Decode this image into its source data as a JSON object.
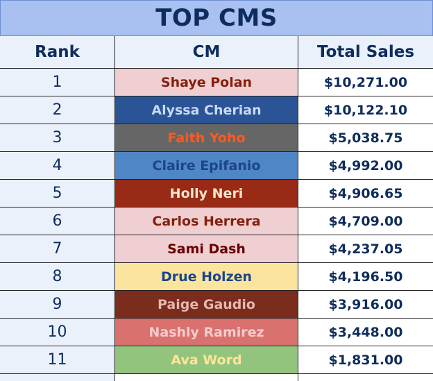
{
  "header": {
    "title": "TOP CMS"
  },
  "table": {
    "columns": [
      "Rank",
      "CM",
      "Total Sales"
    ],
    "rows": [
      [
        1,
        "Shaye Polan",
        "$10,271.00"
      ],
      [
        2,
        "Alyssa Cherian",
        "$10,122.10"
      ],
      [
        3,
        "Faith Yoho",
        "$5,038.75"
      ],
      [
        4,
        "Claire Epifanio",
        "$4,992.00"
      ],
      [
        5,
        "Holly Neri",
        "$4,906.65"
      ],
      [
        6,
        "Carlos Herrera",
        "$4,709.00"
      ],
      [
        7,
        "Sami Dash",
        "$4,237.05"
      ],
      [
        8,
        "Drue Holzen",
        "$4,196.50"
      ],
      [
        9,
        "Paige Gaudio",
        "$3,916.00"
      ],
      [
        10,
        "Nashly Ramirez",
        "$3,448.00"
      ],
      [
        11,
        "Ava Word",
        "$1,831.00"
      ]
    ],
    "cm_colors": [
      {
        "background": "#efcfd2",
        "text": "#85200c"
      },
      {
        "background": "#2a5495",
        "text": "#c9daf8"
      },
      {
        "background": "#666666",
        "text": "#ff5a1f"
      },
      {
        "background": "#4f86c6",
        "text": "#1c4587"
      },
      {
        "background": "#992a16",
        "text": "#fce5cd"
      },
      {
        "background": "#efcfd2",
        "text": "#85200c"
      },
      {
        "background": "#efcfd2",
        "text": "#660000"
      },
      {
        "background": "#fbe49d",
        "text": "#1c4587"
      },
      {
        "background": "#7a2c1d",
        "text": "#e6b8af"
      },
      {
        "background": "#d9716f",
        "text": "#f4cccc"
      },
      {
        "background": "#93c47d",
        "text": "#ffe599"
      }
    ]
  }
}
